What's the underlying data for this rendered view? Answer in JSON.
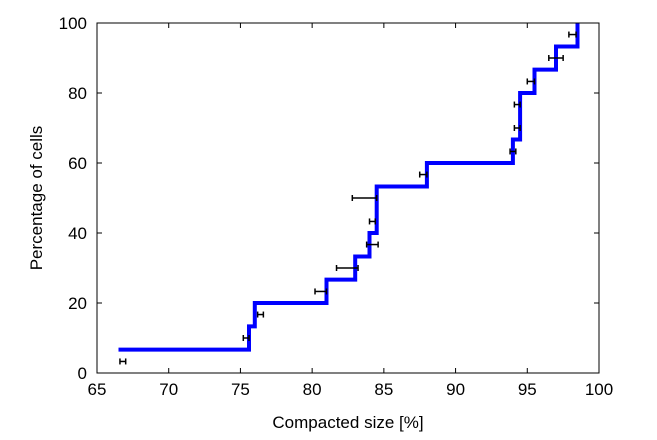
{
  "chart_data": {
    "type": "line",
    "title": "",
    "xlabel": "Compacted size [%]",
    "ylabel": "Percentage of cells",
    "xlim": [
      65,
      100
    ],
    "ylim": [
      0,
      100
    ],
    "xticks": [
      65,
      70,
      75,
      80,
      85,
      90,
      95,
      100
    ],
    "yticks": [
      0,
      20,
      40,
      60,
      80,
      100
    ],
    "grid": false,
    "legend": "none",
    "series": [
      {
        "style": "step",
        "color": "#0000ff",
        "x": [
          66.5,
          75.6,
          75.6,
          76.0,
          76.0,
          81.0,
          81.0,
          83.0,
          83.0,
          84.0,
          84.0,
          84.5,
          84.5,
          88.0,
          88.0,
          94.0,
          94.0,
          94.5,
          94.5,
          95.5,
          95.5,
          97.0,
          97.0,
          98.5,
          98.5
        ],
        "y": [
          6.7,
          6.7,
          13.3,
          13.3,
          20.0,
          20.0,
          26.7,
          26.7,
          33.3,
          33.3,
          40.0,
          40.0,
          53.3,
          53.3,
          60.0,
          60.0,
          66.7,
          66.7,
          80.0,
          80.0,
          86.7,
          86.7,
          93.3,
          93.3,
          100.0
        ]
      }
    ],
    "error_bars": {
      "color": "#000000",
      "points": [
        {
          "y": 3.3,
          "xmin": 66.6,
          "xmax": 67.0
        },
        {
          "y": 10.0,
          "xmin": 75.2,
          "xmax": 75.6
        },
        {
          "y": 16.7,
          "xmin": 76.2,
          "xmax": 76.6
        },
        {
          "y": 23.3,
          "xmin": 80.2,
          "xmax": 81.0
        },
        {
          "y": 30.0,
          "xmin": 81.7,
          "xmax": 83.2
        },
        {
          "y": 36.7,
          "xmin": 83.8,
          "xmax": 84.6
        },
        {
          "y": 43.3,
          "xmin": 84.0,
          "xmax": 84.4
        },
        {
          "y": 50.0,
          "xmin": 82.8,
          "xmax": 84.5
        },
        {
          "y": 56.7,
          "xmin": 87.5,
          "xmax": 88.0
        },
        {
          "y": 63.3,
          "xmin": 93.8,
          "xmax": 94.2
        },
        {
          "y": 70.0,
          "xmin": 94.1,
          "xmax": 94.5
        },
        {
          "y": 76.7,
          "xmin": 94.1,
          "xmax": 94.5
        },
        {
          "y": 83.3,
          "xmin": 95.0,
          "xmax": 95.5
        },
        {
          "y": 90.0,
          "xmin": 96.5,
          "xmax": 97.5
        },
        {
          "y": 96.7,
          "xmin": 97.9,
          "xmax": 98.4
        }
      ]
    }
  }
}
